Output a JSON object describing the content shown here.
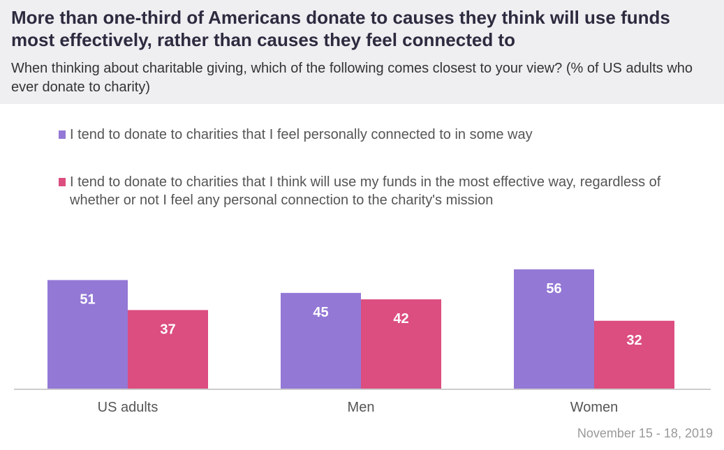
{
  "header": {
    "title": "More than one-third of Americans donate to causes they think will use funds most effectively, rather than causes they feel connected to",
    "subtitle": "When thinking about charitable giving, which of the following comes closest to your view? (% of US adults who ever donate to charity)"
  },
  "colors": {
    "personal": "#9378d6",
    "effective": "#dc4d80",
    "axis": "#cccccc"
  },
  "chart_data": {
    "type": "bar",
    "categories": [
      "US adults",
      "Men",
      "Women"
    ],
    "series": [
      {
        "name": "I tend to donate to charities that I feel personally connected to in some way",
        "values": [
          51,
          45,
          56
        ]
      },
      {
        "name": "I tend to donate to charities that I think will use my funds in the most effective way, regardless of whether or not I feel any personal connection to the charity's mission",
        "values": [
          37,
          42,
          32
        ]
      }
    ],
    "ylim": [
      0,
      100
    ],
    "xlabel": "",
    "ylabel": "",
    "grid": false,
    "legend": "top"
  },
  "footnote": "November 15 - 18, 2019"
}
